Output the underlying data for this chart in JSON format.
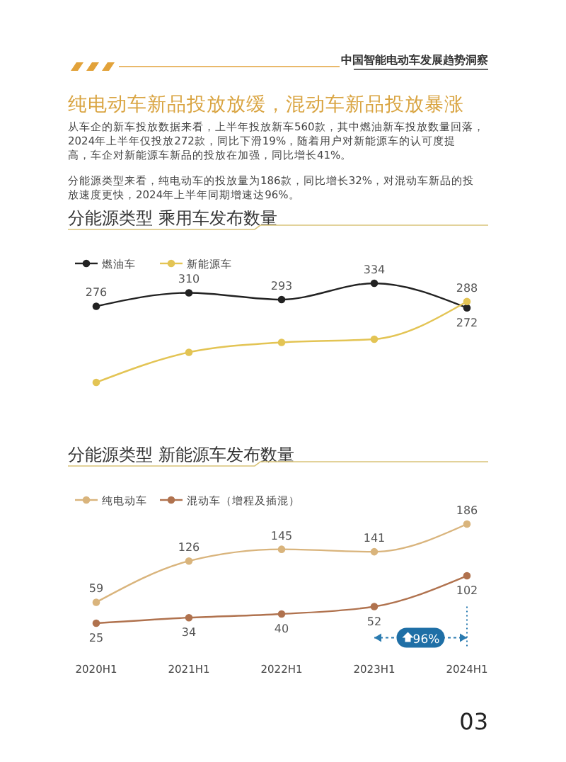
{
  "chart_data": [
    {
      "type": "line",
      "title": "分能源类型 乘用车发布数量",
      "categories": [
        null,
        null,
        null,
        null,
        null
      ],
      "annotations": [
        "中国智能电动车发展趋势洞察",
        "纯电动车新品投放放缓，混动车新品投放暴涨",
        "从车企的新车投放数据来看，上半年投放新车560款，其中燃油新车投放数量回落，2024年上半年仅投放272款，同比下滑19%，随着用户对新能源车的认可度提高，车企对新能源车新品的投放在加强，同比增长41%。",
        "分能源类型来看，纯电动车的投放量为186款，同比增长32%，对混动车新品的投放速度更快，2024年上半年同期增速达96%。"
      ],
      "series": [
        {
          "name": "燃油车",
          "color": "#222222",
          "values": [
            276,
            310,
            293,
            334,
            272
          ],
          "value_labels": [
            "276",
            "310",
            "293",
            "334",
            "272"
          ]
        },
        {
          "name": "新能源车",
          "color": "#e3c454",
          "values": [
            84,
            160,
            185,
            193,
            288
          ],
          "value_labels": [
            null,
            null,
            null,
            null,
            "288"
          ]
        }
      ],
      "legend": "top left",
      "marker": "circle",
      "line_style": "solid"
    },
    {
      "type": "line",
      "title": "分能源类型 新能源车发布数量",
      "categories": [
        "2020H1",
        "2021H1",
        "2022H1",
        "2023H1",
        "2024H1"
      ],
      "annotations": [
        "96%",
        "03"
      ],
      "series": [
        {
          "name": "纯电动车",
          "color": "#d9b47c",
          "values": [
            59,
            126,
            145,
            141,
            186
          ]
        },
        {
          "name": "混动车（增程及插混）",
          "color": "#b0724e",
          "values": [
            25,
            34,
            40,
            52,
            102
          ]
        }
      ],
      "data_labels": true,
      "legend": "top left",
      "marker": "circle",
      "line_style": "solid"
    }
  ]
}
